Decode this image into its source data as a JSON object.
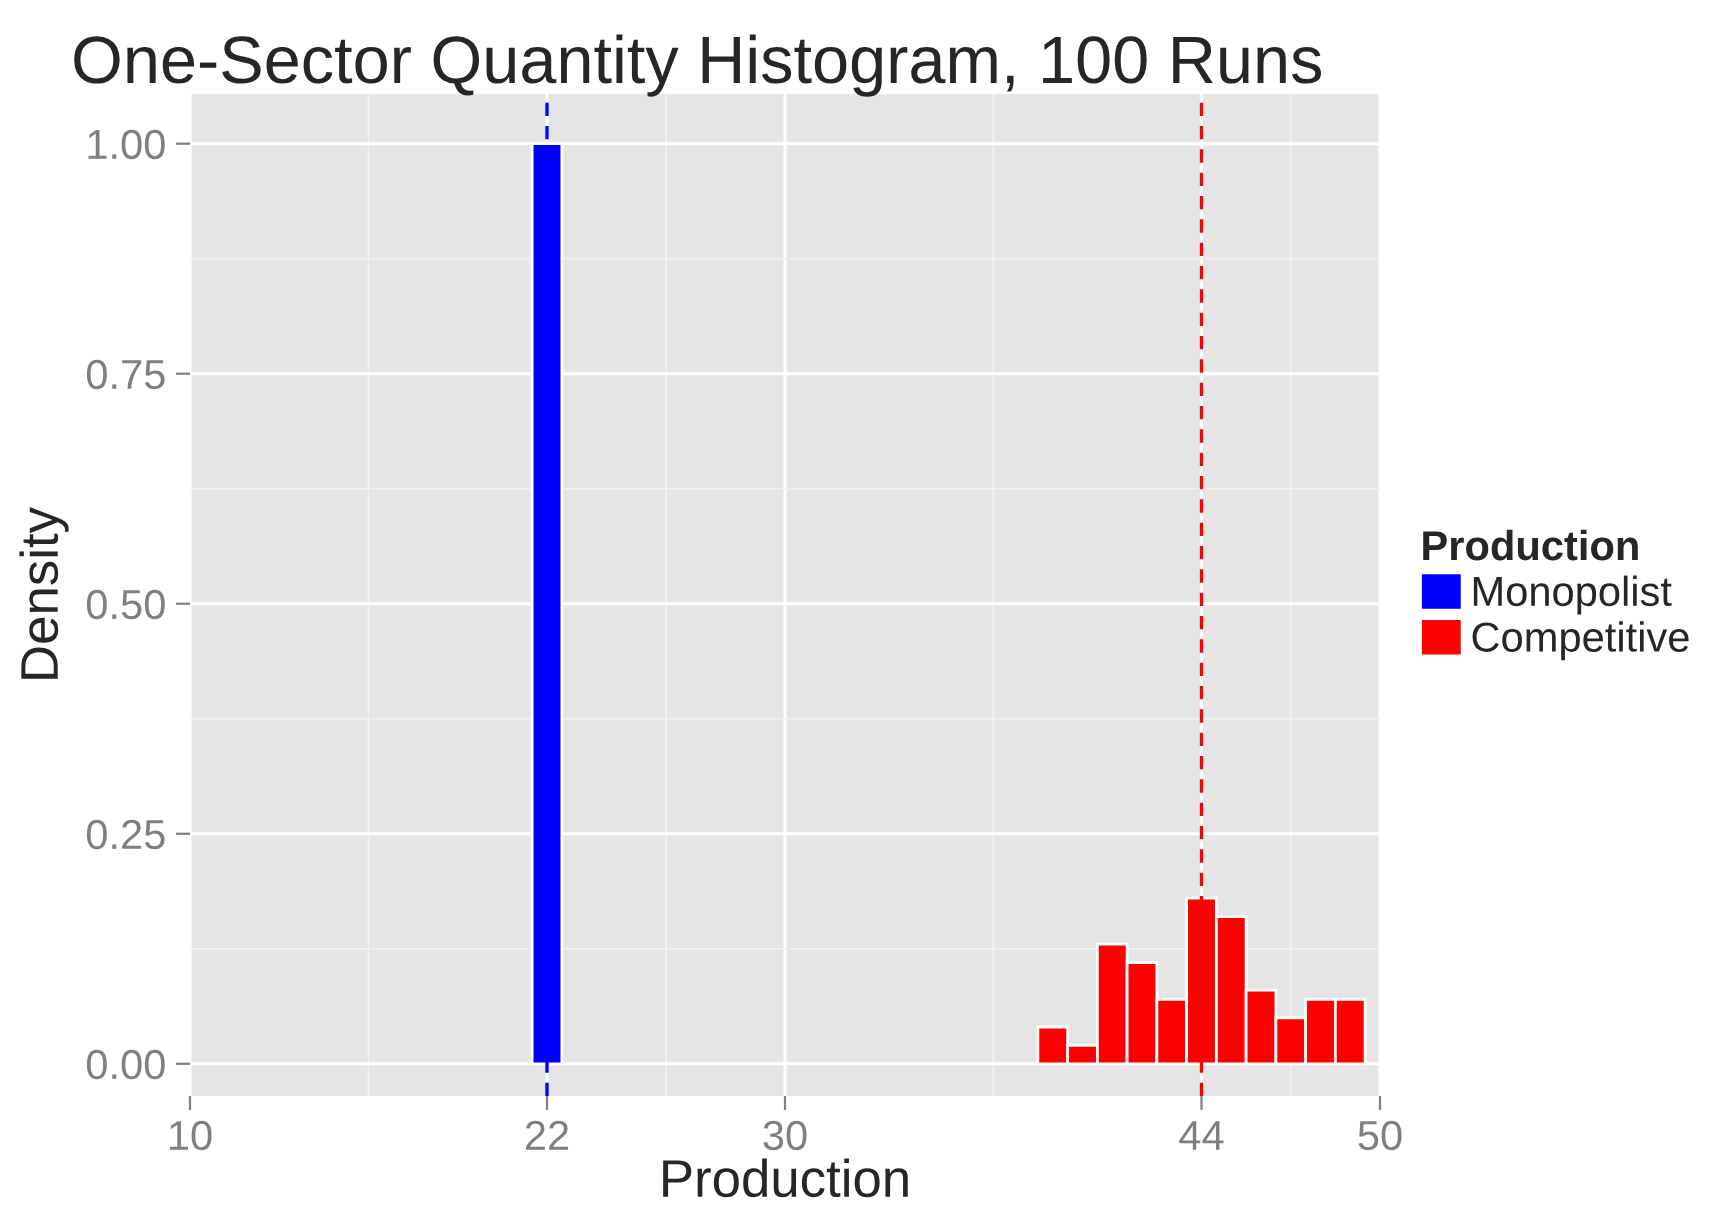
{
  "chart_data": {
    "type": "histogram",
    "title": "One-Sector Quantity Histogram, 100 Runs",
    "xlabel": "Production",
    "ylabel": "Density",
    "legend_title": "Production",
    "bins": [
      21.5,
      22.5,
      23.5,
      24.5,
      25.5,
      26.5,
      27.5,
      28.5,
      29.5,
      30.5,
      31.5,
      32.5,
      33.5,
      34.5,
      35.5,
      36.5,
      37.5,
      38.5,
      39.5,
      40.5,
      41.5,
      42.5,
      43.5,
      44.5,
      45.5,
      46.5,
      47.5,
      48.5,
      49.5
    ],
    "series": [
      {
        "name": "Monopolist",
        "color": "#0000ff",
        "values": [
          1.0,
          null,
          null,
          null,
          null,
          null,
          null,
          null,
          null,
          null,
          null,
          null,
          null,
          null,
          null,
          null,
          null,
          null,
          null,
          null,
          null,
          null,
          null,
          null,
          null,
          null,
          null,
          null
        ]
      },
      {
        "name": "Competitive",
        "color": "#ff0000",
        "values": [
          null,
          null,
          null,
          null,
          null,
          null,
          null,
          null,
          null,
          null,
          null,
          null,
          null,
          null,
          null,
          null,
          null,
          0.04,
          0.02,
          0.13,
          0.11,
          0.07,
          0.18,
          0.16,
          0.08,
          0.05,
          0.07,
          0.07
        ]
      }
    ],
    "ref_lines": [
      {
        "axis": "x",
        "value": 22,
        "color": "#0000ff",
        "line_style": "dashed"
      },
      {
        "axis": "x",
        "value": 44,
        "color": "#ff0000",
        "line_style": "dashed"
      }
    ],
    "xlim": [
      10,
      50
    ],
    "ylim": [
      -0.035,
      1.054
    ],
    "xticks": [
      10,
      22,
      30,
      44,
      50
    ],
    "yticks": [
      {
        "value": 0,
        "label": "0.00"
      },
      {
        "value": 0.25,
        "label": "0.25"
      },
      {
        "value": 0.5,
        "label": "0.50"
      },
      {
        "value": 0.75,
        "label": "0.75"
      },
      {
        "value": 1,
        "label": "1.00"
      }
    ],
    "grid": true,
    "legend": "right"
  }
}
